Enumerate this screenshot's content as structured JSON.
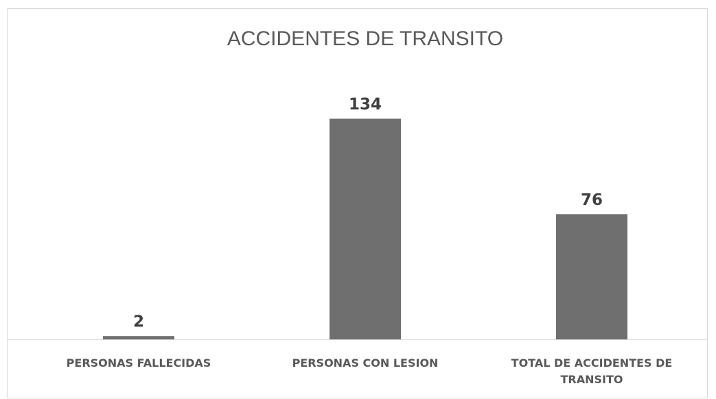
{
  "chart_data": {
    "type": "bar",
    "title": "ACCIDENTES DE TRANSITO",
    "categories": [
      "PERSONAS FALLECIDAS",
      "PERSONAS CON LESION",
      "TOTAL DE ACCIDENTES DE TRANSITO"
    ],
    "values": [
      2,
      134,
      76
    ],
    "color": "#6f6f6f"
  }
}
